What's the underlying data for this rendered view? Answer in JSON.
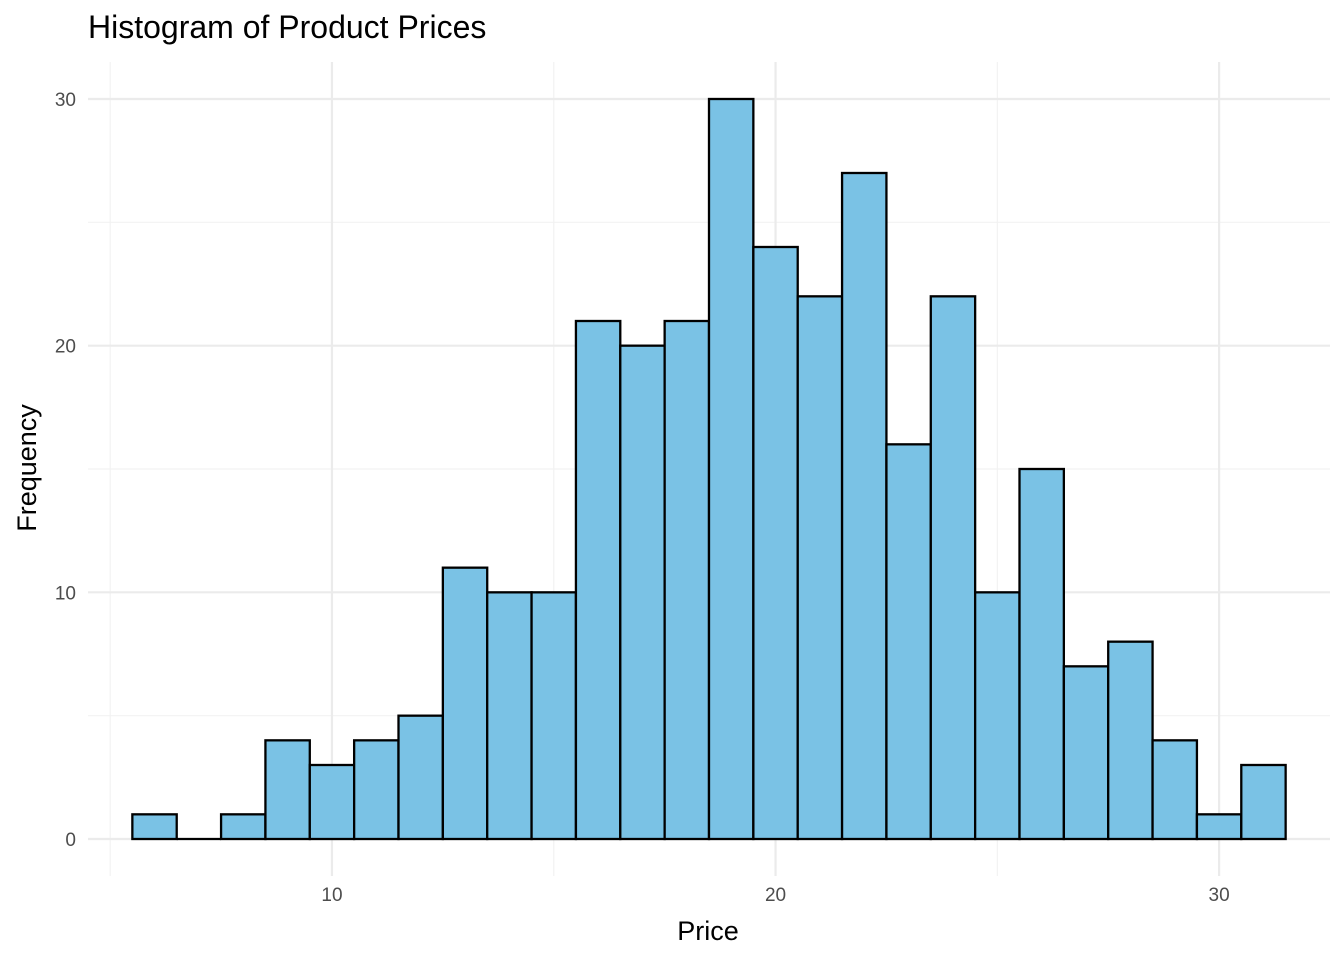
{
  "chart_data": {
    "type": "bar",
    "title": "Histogram of Product Prices",
    "xlabel": "Price",
    "ylabel": "Frequency",
    "x_ticks": [
      10,
      20,
      30
    ],
    "y_ticks": [
      0,
      10,
      20,
      30
    ],
    "x_minor_ticks": [
      5,
      15,
      25
    ],
    "y_minor_ticks": [
      5,
      15,
      25
    ],
    "xlim": [
      4.5,
      32.5
    ],
    "ylim": [
      -1.5,
      31.5
    ],
    "bin_width": 1,
    "bin_centers": [
      6,
      7,
      8,
      9,
      10,
      11,
      12,
      13,
      14,
      15,
      16,
      17,
      18,
      19,
      20,
      21,
      22,
      23,
      24,
      25,
      26,
      27,
      28,
      29,
      30,
      31
    ],
    "values": [
      1,
      0,
      1,
      4,
      3,
      4,
      5,
      11,
      10,
      10,
      21,
      20,
      21,
      30,
      24,
      22,
      27,
      16,
      22,
      10,
      15,
      7,
      8,
      4,
      1,
      3
    ],
    "grid": true,
    "bar_fill": "#7ac2e5",
    "bar_stroke": "#000000",
    "background": "#ffffff"
  }
}
